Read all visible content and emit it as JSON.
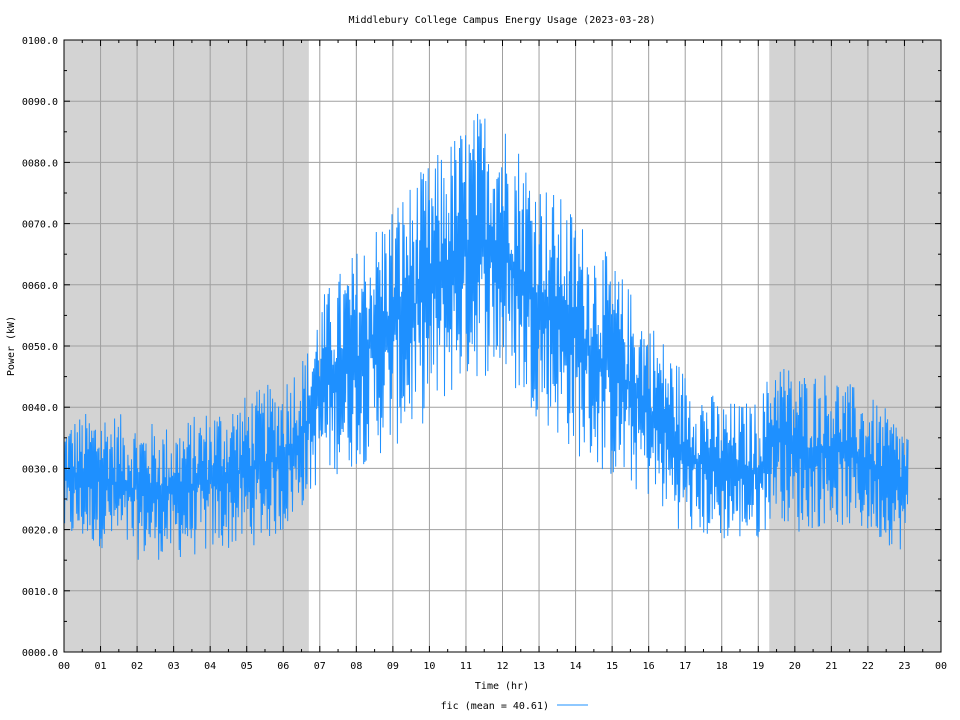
{
  "chart_data": {
    "type": "line",
    "title": "Middlebury College Campus Energy Usage (2023-03-28)",
    "xlabel": "Time (hr)",
    "ylabel": "Power (kW)",
    "xlim": [
      0,
      24
    ],
    "ylim": [
      0,
      100
    ],
    "x_ticks": [
      "00",
      "01",
      "02",
      "03",
      "04",
      "05",
      "06",
      "07",
      "08",
      "09",
      "10",
      "11",
      "12",
      "13",
      "14",
      "15",
      "16",
      "17",
      "18",
      "19",
      "20",
      "21",
      "22",
      "23",
      "00"
    ],
    "y_ticks": [
      "0000.0",
      "0010.0",
      "0020.0",
      "0030.0",
      "0040.0",
      "0050.0",
      "0060.0",
      "0070.0",
      "0080.0",
      "0090.0",
      "0100.0"
    ],
    "grid": true,
    "shaded_ranges": [
      [
        0,
        6.7
      ],
      [
        19.3,
        24
      ]
    ],
    "shade_color": "#d3d3d3",
    "series": [
      {
        "name": "fic (mean = 40.61)",
        "color": "#1e90ff",
        "x_range": [
          0,
          23.1
        ],
        "envelope": [
          [
            0.0,
            18,
            38
          ],
          [
            1.0,
            17,
            40
          ],
          [
            2.0,
            15,
            38
          ],
          [
            3.0,
            15,
            37
          ],
          [
            4.0,
            16,
            40
          ],
          [
            5.0,
            17,
            42
          ],
          [
            6.0,
            19,
            45
          ],
          [
            6.7,
            25,
            50
          ],
          [
            7.0,
            28,
            58
          ],
          [
            8.0,
            30,
            66
          ],
          [
            9.0,
            33,
            74
          ],
          [
            10.0,
            38,
            80
          ],
          [
            11.0,
            44,
            87
          ],
          [
            11.6,
            45,
            90
          ],
          [
            12.0,
            44,
            88
          ],
          [
            13.0,
            38,
            78
          ],
          [
            14.0,
            32,
            72
          ],
          [
            15.0,
            28,
            64
          ],
          [
            16.0,
            25,
            55
          ],
          [
            17.0,
            19,
            46
          ],
          [
            18.0,
            18,
            41
          ],
          [
            19.0,
            18,
            41
          ],
          [
            19.5,
            23,
            49
          ],
          [
            20.0,
            19,
            46
          ],
          [
            21.0,
            21,
            46
          ],
          [
            22.0,
            19,
            42
          ],
          [
            23.1,
            16,
            37
          ]
        ],
        "mean": 40.61
      }
    ]
  }
}
